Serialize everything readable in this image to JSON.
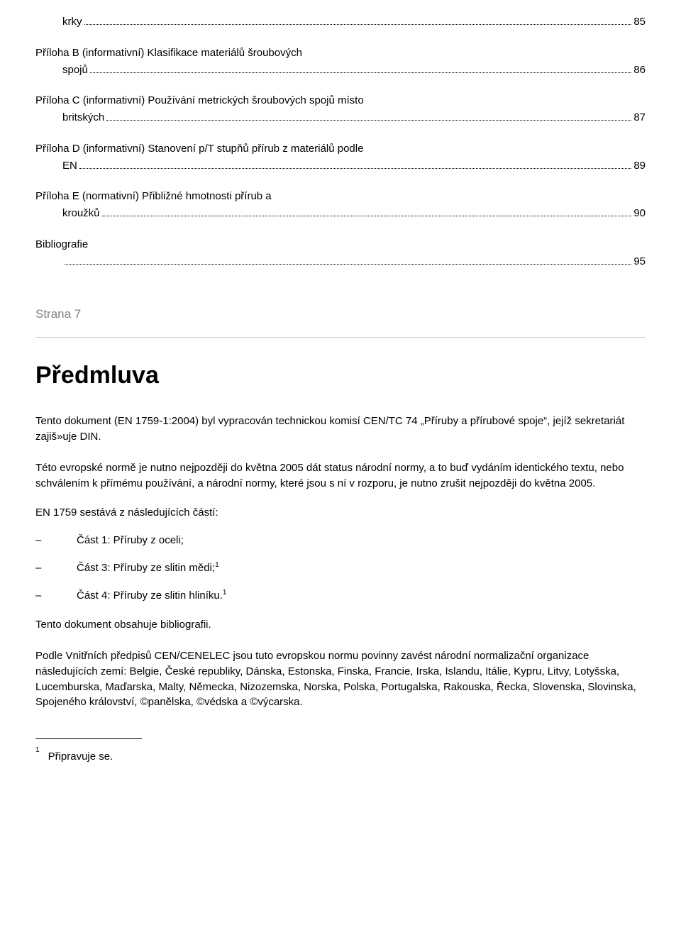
{
  "colors": {
    "background": "#ffffff",
    "text": "#000000",
    "muted": "#808080",
    "rule": "#cccccc",
    "footnote_rule": "#000000"
  },
  "typography": {
    "body_fontsize_pt": 11,
    "heading_fontsize_pt": 26,
    "font_family": "Verdana"
  },
  "toc": [
    {
      "label_head": "krky",
      "label_cont": null,
      "page": "85"
    },
    {
      "label_head": "Příloha B (informativní) Klasifikace materiálů šroubových",
      "label_cont": "spojů",
      "page": "86"
    },
    {
      "label_head": "Příloha C (informativní) Používání metrických šroubových spojů místo",
      "label_cont": "britských",
      "page": "87"
    },
    {
      "label_head": "Příloha D (informativní) Stanovení p/T stupňů přírub z materiálů podle",
      "label_cont": "EN",
      "page": "89"
    },
    {
      "label_head": "Příloha E (normativní) Přibližné hmotnosti přírub a",
      "label_cont": "kroužků",
      "page": "90"
    },
    {
      "label_head": "Bibliografie",
      "label_cont": "",
      "page": "95"
    }
  ],
  "strana": "Strana 7",
  "heading": "Předmluva",
  "para_intro": "Tento dokument (EN 1759-1:2004) byl vypracován technickou komisí CEN/TC 74 „Příruby a přírubové spoje“, jejíž sekretariát zajiš»uje DIN.",
  "para_status": "Této evropské normě je nutno nejpozději do května 2005 dát status národní normy, a to buď vydáním identického textu, nebo schválením k přímému používání, a národní normy, které jsou s ní v rozporu, je nutno zrušit nejpozději do května 2005.",
  "parts_intro": "EN 1759 sestává z následujících částí:",
  "dash": "–",
  "parts": [
    {
      "text": "Část 1: Příruby z oceli;",
      "sup": ""
    },
    {
      "text": "Část 3: Příruby ze slitin mědi;",
      "sup": "1"
    },
    {
      "text": "Část 4: Příruby ze slitin hliníku.",
      "sup": "1"
    }
  ],
  "para_biblio": "Tento dokument obsahuje bibliografii.",
  "para_members": "Podle Vnitřních předpisů CEN/CENELEC jsou tuto evropskou normu povinny zavést národní normalizační organizace následujících zemí: Belgie, České republiky, Dánska, Estonska, Finska, Francie, Irska, Islandu, Itálie, Kypru, Litvy, Lotyšska, Lucemburska, Maďarska, Malty, Německa, Nizozemska, Norska, Polska, Portugalska, Rakouska, Řecka, Slovenska, Slovinska, Spojeného království, ©panělska, ©védska a ©výcarska.",
  "footnote": {
    "mark": "1",
    "text": "Připravuje se."
  }
}
